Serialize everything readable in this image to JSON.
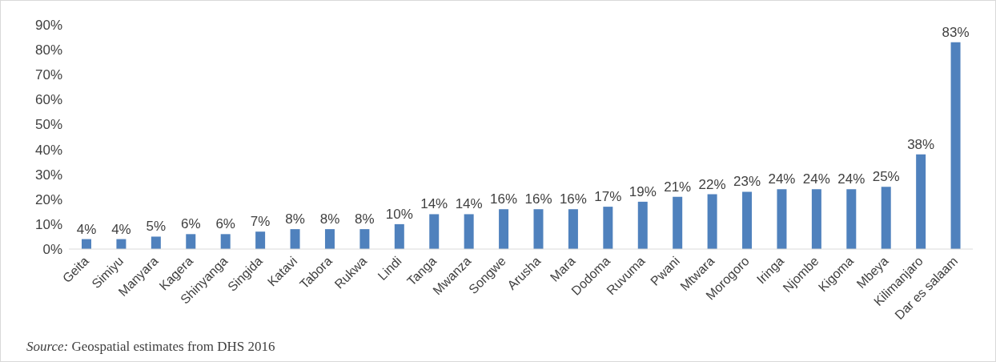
{
  "chart_data": {
    "type": "bar",
    "categories": [
      "Geita",
      "Simiyu",
      "Manyara",
      "Kagera",
      "Shinyanga",
      "Singida",
      "Katavi",
      "Tabora",
      "Rukwa",
      "Lindi",
      "Tanga",
      "Mwanza",
      "Songwe",
      "Arusha",
      "Mara",
      "Dodoma",
      "Ruvuma",
      "Pwani",
      "Mtwara",
      "Morogoro",
      "Iringa",
      "Njombe",
      "Kigoma",
      "Mbeya",
      "Kilimanjaro",
      "Dar es salaam"
    ],
    "values": [
      4,
      4,
      5,
      6,
      6,
      7,
      8,
      8,
      8,
      10,
      14,
      14,
      16,
      16,
      16,
      17,
      19,
      21,
      22,
      23,
      24,
      24,
      24,
      25,
      38,
      83
    ],
    "value_labels": [
      "4%",
      "4%",
      "5%",
      "6%",
      "6%",
      "7%",
      "8%",
      "8%",
      "8%",
      "10%",
      "14%",
      "14%",
      "16%",
      "16%",
      "16%",
      "17%",
      "19%",
      "21%",
      "22%",
      "23%",
      "24%",
      "24%",
      "24%",
      "25%",
      "38%",
      "83%"
    ],
    "color": "#4f81bd",
    "ylim": [
      0,
      90
    ],
    "yticks": [
      {
        "value": 0,
        "label": "0%"
      },
      {
        "value": 10,
        "label": "10%"
      },
      {
        "value": 20,
        "label": "20%"
      },
      {
        "value": 30,
        "label": "30%"
      },
      {
        "value": 40,
        "label": "40%"
      },
      {
        "value": 50,
        "label": "50%"
      },
      {
        "value": 60,
        "label": "60%"
      },
      {
        "value": 70,
        "label": "70%"
      },
      {
        "value": 80,
        "label": "80%"
      },
      {
        "value": 90,
        "label": "90%"
      }
    ],
    "annotations": [
      "Source: Geospatial estimates from DHS 2016"
    ]
  }
}
